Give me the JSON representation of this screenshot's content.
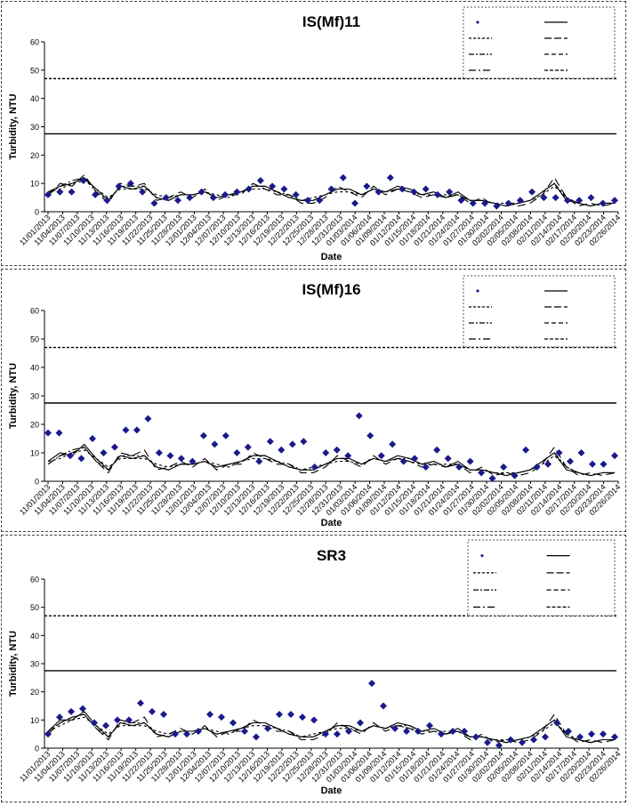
{
  "chart_data": [
    {
      "type": "line",
      "title": "IS(Mf)11",
      "xlabel": "Date",
      "ylabel": "Turbidity, NTU",
      "ylim": [
        0,
        60
      ],
      "yticks": [
        "0",
        "10",
        "20",
        "30",
        "40",
        "50",
        "60"
      ],
      "xticks": [
        "11/01/2013",
        "11/04/2013",
        "11/07/2013",
        "11/10/2013",
        "11/13/2013",
        "11/16/2013",
        "11/19/2013",
        "11/22/2013",
        "11/25/2013",
        "11/28/2013",
        "12/01/2013",
        "12/04/2013",
        "12/07/2013",
        "12/10/2013",
        "12/13/2013",
        "12/16/2013",
        "12/19/2013",
        "12/22/2013",
        "12/25/2013",
        "12/28/2013",
        "12/31/2013",
        "01/03/2014",
        "01/06/2014",
        "01/09/2014",
        "01/12/2014",
        "01/15/2014",
        "01/18/2014",
        "01/21/2014",
        "01/24/2014",
        "01/27/2014",
        "01/30/2014",
        "02/02/2014",
        "02/05/2014",
        "02/08/2014",
        "02/11/2014",
        "02/14/2014",
        "02/17/2014",
        "02/20/2014",
        "02/23/2014",
        "02/26/2014"
      ],
      "legend_position": "top-right",
      "legend": [
        "",
        "",
        "",
        "",
        "",
        "",
        "",
        ""
      ],
      "hlines": [
        47,
        27.5
      ],
      "points": [
        6,
        7,
        7,
        11,
        6,
        4,
        9,
        10,
        7,
        3,
        5,
        4,
        5,
        7,
        5,
        6,
        7,
        8,
        11,
        9,
        8,
        6,
        4,
        4,
        8,
        12,
        3,
        9,
        7,
        12,
        8,
        7,
        8,
        6,
        7,
        4,
        3,
        3,
        2,
        3,
        4,
        7,
        5,
        5,
        4,
        4,
        5,
        3,
        4
      ],
      "series": [
        {
          "values": [
            7,
            9,
            10,
            12,
            8,
            4,
            9,
            8,
            9,
            5,
            4,
            6,
            6,
            7,
            5,
            6,
            7,
            9,
            9,
            7,
            5,
            4,
            4,
            6,
            8,
            8,
            6,
            8,
            7,
            9,
            8,
            6,
            7,
            5,
            7,
            4,
            4,
            3,
            2,
            3,
            4,
            7,
            10,
            4,
            3,
            2,
            3,
            3
          ]
        },
        {
          "values": [
            6,
            10,
            9,
            13,
            7,
            3,
            10,
            9,
            10,
            4,
            5,
            7,
            5,
            8,
            4,
            6,
            6,
            10,
            8,
            6,
            6,
            3,
            3,
            5,
            9,
            7,
            5,
            9,
            6,
            8,
            7,
            5,
            6,
            5,
            6,
            3,
            5,
            2,
            3,
            2,
            3,
            6,
            12,
            5,
            2,
            3,
            2,
            3
          ]
        },
        {
          "values": [
            7,
            8,
            10,
            11,
            8,
            5,
            8,
            8,
            8,
            6,
            5,
            6,
            6,
            7,
            6,
            5,
            7,
            8,
            8,
            7,
            5,
            4,
            5,
            6,
            7,
            7,
            6,
            8,
            7,
            8,
            7,
            6,
            6,
            6,
            6,
            4,
            4,
            3,
            3,
            3,
            4,
            6,
            9,
            5,
            3,
            2,
            3,
            3
          ]
        },
        {
          "values": [
            6,
            9,
            11,
            12,
            7,
            4,
            9,
            9,
            9,
            5,
            4,
            6,
            6,
            7,
            5,
            6,
            7,
            9,
            9,
            7,
            6,
            4,
            4,
            6,
            8,
            8,
            6,
            8,
            7,
            8,
            8,
            6,
            7,
            5,
            6,
            4,
            4,
            3,
            2,
            3,
            4,
            7,
            10,
            5,
            3,
            2,
            3,
            3
          ]
        }
      ]
    },
    {
      "type": "line",
      "title": "IS(Mf)16",
      "xlabel": "Date",
      "ylabel": "Turbidity, NTU",
      "ylim": [
        0,
        60
      ],
      "yticks": [
        "0",
        "10",
        "20",
        "30",
        "40",
        "50",
        "60"
      ],
      "xticks": [
        "11/01/2013",
        "11/04/2013",
        "11/07/2013",
        "11/10/2013",
        "11/13/2013",
        "11/16/2013",
        "11/19/2013",
        "11/22/2013",
        "11/25/2013",
        "11/28/2013",
        "12/01/2013",
        "12/04/2013",
        "12/07/2013",
        "12/10/2013",
        "12/13/2013",
        "12/16/2013",
        "12/19/2013",
        "12/22/2013",
        "12/25/2013",
        "12/28/2013",
        "12/31/2013",
        "01/03/2014",
        "01/06/2014",
        "01/09/2014",
        "01/12/2014",
        "01/15/2014",
        "01/18/2014",
        "01/21/2014",
        "01/24/2014",
        "01/27/2014",
        "01/30/2014",
        "02/02/2014",
        "02/05/2014",
        "02/08/2014",
        "02/11/2014",
        "02/14/2014",
        "02/17/2014",
        "02/20/2014",
        "02/23/2014",
        "02/26/2014"
      ],
      "legend_position": "top-right",
      "legend": [
        "",
        "",
        "",
        "",
        "",
        "",
        "",
        ""
      ],
      "hlines": [
        47,
        27.5
      ],
      "points": [
        17,
        17,
        9,
        8,
        15,
        10,
        12,
        18,
        18,
        22,
        10,
        9,
        8,
        7,
        16,
        13,
        16,
        10,
        12,
        7,
        14,
        11,
        13,
        14,
        5,
        10,
        11,
        9,
        23,
        16,
        9,
        13,
        7,
        8,
        5,
        11,
        8,
        5,
        7,
        3,
        1,
        5,
        2,
        11,
        5,
        6,
        10,
        7,
        10,
        6,
        6,
        9
      ],
      "series": [
        {
          "values": [
            7,
            10,
            9,
            13,
            8,
            4,
            9,
            8,
            9,
            5,
            4,
            6,
            6,
            7,
            5,
            6,
            7,
            9,
            9,
            7,
            5,
            4,
            4,
            6,
            8,
            8,
            6,
            8,
            7,
            9,
            8,
            6,
            7,
            5,
            7,
            4,
            4,
            3,
            2,
            3,
            4,
            7,
            10,
            4,
            3,
            2,
            3,
            3
          ]
        },
        {
          "values": [
            6,
            9,
            10,
            12,
            7,
            3,
            10,
            9,
            11,
            4,
            5,
            7,
            5,
            8,
            4,
            6,
            6,
            10,
            8,
            6,
            6,
            3,
            3,
            5,
            9,
            7,
            5,
            9,
            6,
            8,
            7,
            5,
            6,
            5,
            6,
            3,
            5,
            2,
            3,
            2,
            3,
            6,
            12,
            5,
            2,
            3,
            2,
            3
          ]
        },
        {
          "values": [
            7,
            8,
            10,
            11,
            8,
            5,
            8,
            8,
            8,
            6,
            5,
            6,
            6,
            7,
            6,
            5,
            7,
            8,
            8,
            7,
            5,
            4,
            5,
            6,
            7,
            7,
            6,
            8,
            7,
            8,
            7,
            6,
            6,
            6,
            6,
            4,
            4,
            3,
            3,
            3,
            4,
            6,
            9,
            5,
            3,
            2,
            3,
            3
          ]
        },
        {
          "values": [
            6,
            9,
            11,
            12,
            7,
            4,
            9,
            9,
            9,
            5,
            4,
            6,
            6,
            7,
            5,
            6,
            7,
            9,
            9,
            7,
            6,
            4,
            4,
            6,
            8,
            8,
            6,
            8,
            7,
            8,
            8,
            6,
            7,
            5,
            6,
            4,
            4,
            3,
            2,
            3,
            4,
            7,
            10,
            5,
            3,
            2,
            3,
            3
          ]
        }
      ]
    },
    {
      "type": "line",
      "title": "SR3",
      "xlabel": "Date",
      "ylabel": "Turbidity, NTU",
      "ylim": [
        0,
        60
      ],
      "yticks": [
        "0",
        "10",
        "20",
        "30",
        "40",
        "50",
        "60"
      ],
      "xticks": [
        "11/01/2013",
        "11/04/2013",
        "11/07/2013",
        "11/10/2013",
        "11/13/2013",
        "11/16/2013",
        "11/19/2013",
        "11/22/2013",
        "11/25/2013",
        "11/28/2013",
        "12/01/2013",
        "12/04/2013",
        "12/07/2013",
        "12/10/2013",
        "12/13/2013",
        "12/16/2013",
        "12/19/2013",
        "12/22/2013",
        "12/25/2013",
        "12/28/2013",
        "12/31/2013",
        "01/03/2014",
        "01/06/2014",
        "01/09/2014",
        "01/12/2014",
        "01/15/2014",
        "01/18/2014",
        "01/21/2014",
        "01/24/2014",
        "01/27/2014",
        "01/30/2014",
        "02/02/2014",
        "02/05/2014",
        "02/08/2014",
        "02/11/2014",
        "02/14/2014",
        "02/17/2014",
        "02/20/2014",
        "02/23/2014",
        "02/26/2014"
      ],
      "legend_position": "top-right",
      "legend": [
        "",
        "",
        "",
        "",
        "",
        "",
        "",
        ""
      ],
      "hlines": [
        47,
        27.5
      ],
      "points": [
        5,
        11,
        13,
        14,
        9,
        8,
        10,
        10,
        16,
        13,
        12,
        5,
        5,
        6,
        12,
        11,
        9,
        6,
        4,
        7,
        12,
        12,
        11,
        10,
        5,
        5,
        6,
        9,
        23,
        15,
        7,
        6,
        6,
        8,
        5,
        6,
        6,
        4,
        2,
        1,
        3,
        2,
        3,
        4,
        9,
        6,
        4,
        5,
        5,
        4
      ],
      "series": [
        {
          "values": [
            6,
            10,
            10,
            13,
            8,
            4,
            9,
            8,
            9,
            5,
            4,
            6,
            6,
            7,
            5,
            6,
            7,
            9,
            9,
            7,
            5,
            4,
            4,
            6,
            8,
            8,
            6,
            8,
            7,
            9,
            8,
            6,
            7,
            5,
            7,
            4,
            4,
            3,
            2,
            3,
            4,
            7,
            10,
            4,
            3,
            2,
            3,
            3
          ]
        },
        {
          "values": [
            5,
            9,
            11,
            12,
            7,
            3,
            10,
            9,
            11,
            4,
            5,
            7,
            5,
            8,
            4,
            6,
            6,
            10,
            8,
            6,
            6,
            3,
            3,
            5,
            9,
            7,
            5,
            9,
            6,
            8,
            7,
            5,
            6,
            5,
            6,
            3,
            5,
            2,
            3,
            2,
            3,
            6,
            12,
            5,
            2,
            3,
            2,
            3
          ]
        },
        {
          "values": [
            6,
            8,
            10,
            11,
            8,
            5,
            8,
            8,
            8,
            6,
            5,
            6,
            6,
            7,
            6,
            5,
            7,
            8,
            8,
            7,
            5,
            4,
            5,
            6,
            7,
            7,
            6,
            8,
            7,
            8,
            7,
            6,
            6,
            6,
            6,
            4,
            4,
            3,
            3,
            3,
            4,
            6,
            9,
            5,
            3,
            2,
            3,
            3
          ]
        },
        {
          "values": [
            6,
            9,
            11,
            12,
            7,
            4,
            9,
            9,
            9,
            5,
            4,
            6,
            6,
            7,
            5,
            6,
            7,
            9,
            9,
            7,
            6,
            4,
            4,
            6,
            8,
            8,
            6,
            8,
            7,
            8,
            8,
            6,
            7,
            5,
            6,
            4,
            4,
            3,
            2,
            3,
            4,
            7,
            10,
            5,
            3,
            2,
            3,
            3
          ]
        }
      ]
    }
  ],
  "colors": {
    "marker": "#1a1a8c",
    "line": "#000000",
    "border": "#444444"
  }
}
